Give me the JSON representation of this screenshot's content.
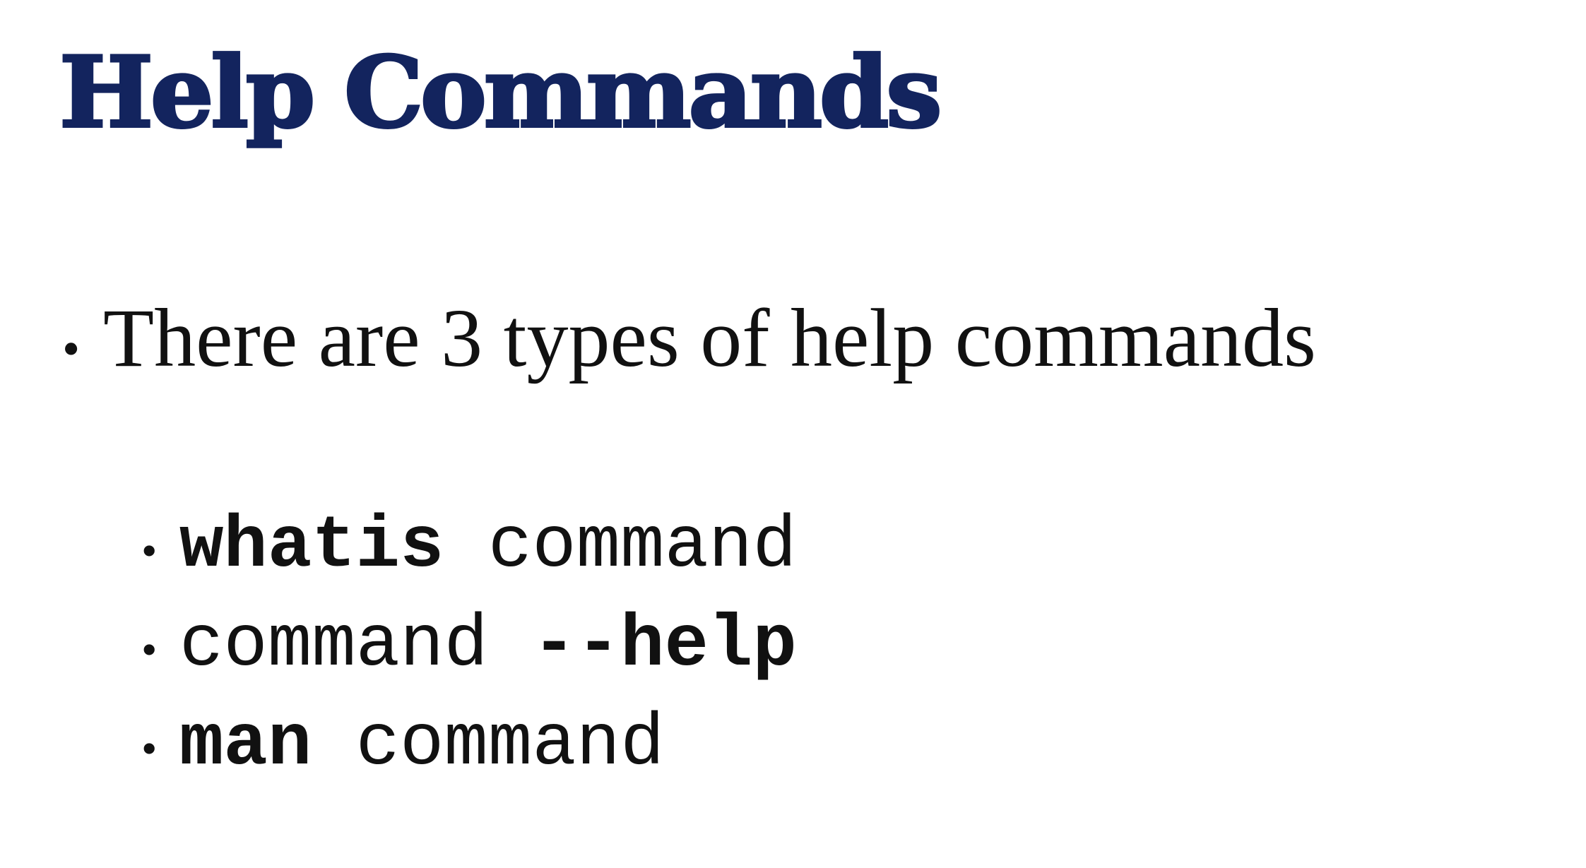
{
  "slide": {
    "title": "Help Commands",
    "intro_bullet": "There are 3 types of help commands",
    "items": [
      {
        "first": "whatis",
        "second": "command"
      },
      {
        "first": "command",
        "second": "--help"
      },
      {
        "first": "man",
        "second": "command"
      }
    ]
  },
  "colors": {
    "title": "#13245e",
    "text": "#111111",
    "background": "#ffffff"
  }
}
